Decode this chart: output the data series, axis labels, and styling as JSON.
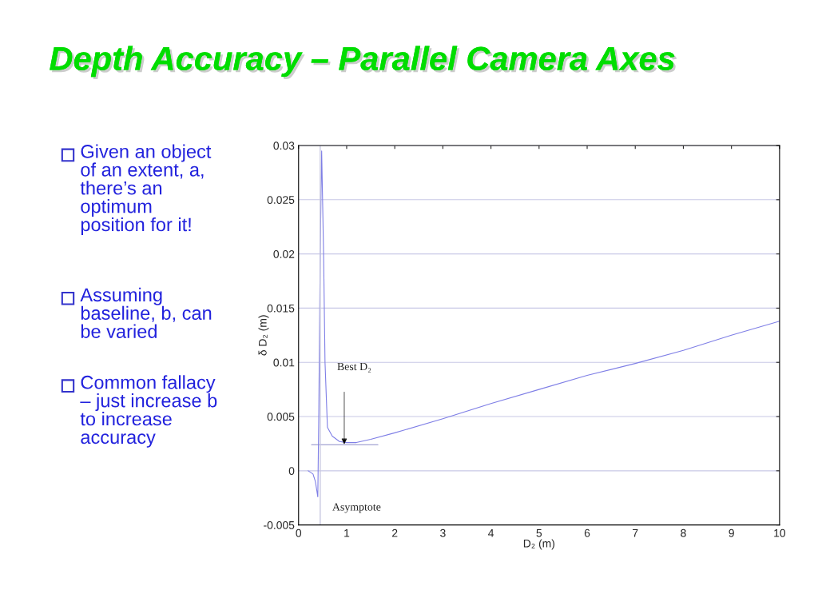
{
  "chart_data": {
    "type": "line",
    "title": "Depth Accuracy – Parallel Camera Axes",
    "xlabel": "D₂ (m)",
    "ylabel": "δ D₂ (m)",
    "series": [
      {
        "color": "#7f7fe6",
        "x": [
          0.2,
          0.3,
          0.35,
          0.4,
          0.42,
          0.45,
          0.48,
          0.52,
          0.55,
          0.6,
          0.7,
          0.85,
          1.0,
          1.2,
          1.5,
          2,
          3,
          4,
          5,
          6,
          7,
          8,
          9,
          10
        ],
        "values": [
          0,
          -0.0003,
          -0.001,
          -0.0024,
          0.005,
          0.02,
          0.0295,
          0.02,
          0.01,
          0.004,
          0.0032,
          0.0027,
          0.0026,
          0.0026,
          0.0029,
          0.0035,
          0.0048,
          0.0062,
          0.0075,
          0.0088,
          0.0099,
          0.0111,
          0.0125,
          0.0138
        ]
      },
      {
        "type": "line",
        "color": "#8c8cc8",
        "x": [
          0.27,
          1.65
        ],
        "values": [
          0.0024,
          0.0024
        ]
      }
    ],
    "ref_lines": [
      {
        "axis": "x",
        "value": 0.45,
        "color": "#c8c8e0"
      }
    ],
    "xlim": [
      0,
      10
    ],
    "xticks": [
      0,
      1,
      2,
      3,
      4,
      5,
      6,
      7,
      8,
      9,
      10
    ],
    "ylim": [
      -0.005,
      0.03
    ],
    "yticks": [
      -0.005,
      0,
      0.005,
      0.01,
      0.015,
      0.02,
      0.025,
      0.03
    ],
    "grid": "y",
    "legend": false,
    "annotations": [
      "Best D₂",
      "Asymptote",
      "Given an object\nof an extent, a,\nthere’s an\noptimum\nposition for it!",
      "Assuming\nbaseline, b, can\nbe varied",
      "Common fallacy\n– just increase b\nto increase\naccuracy"
    ]
  }
}
